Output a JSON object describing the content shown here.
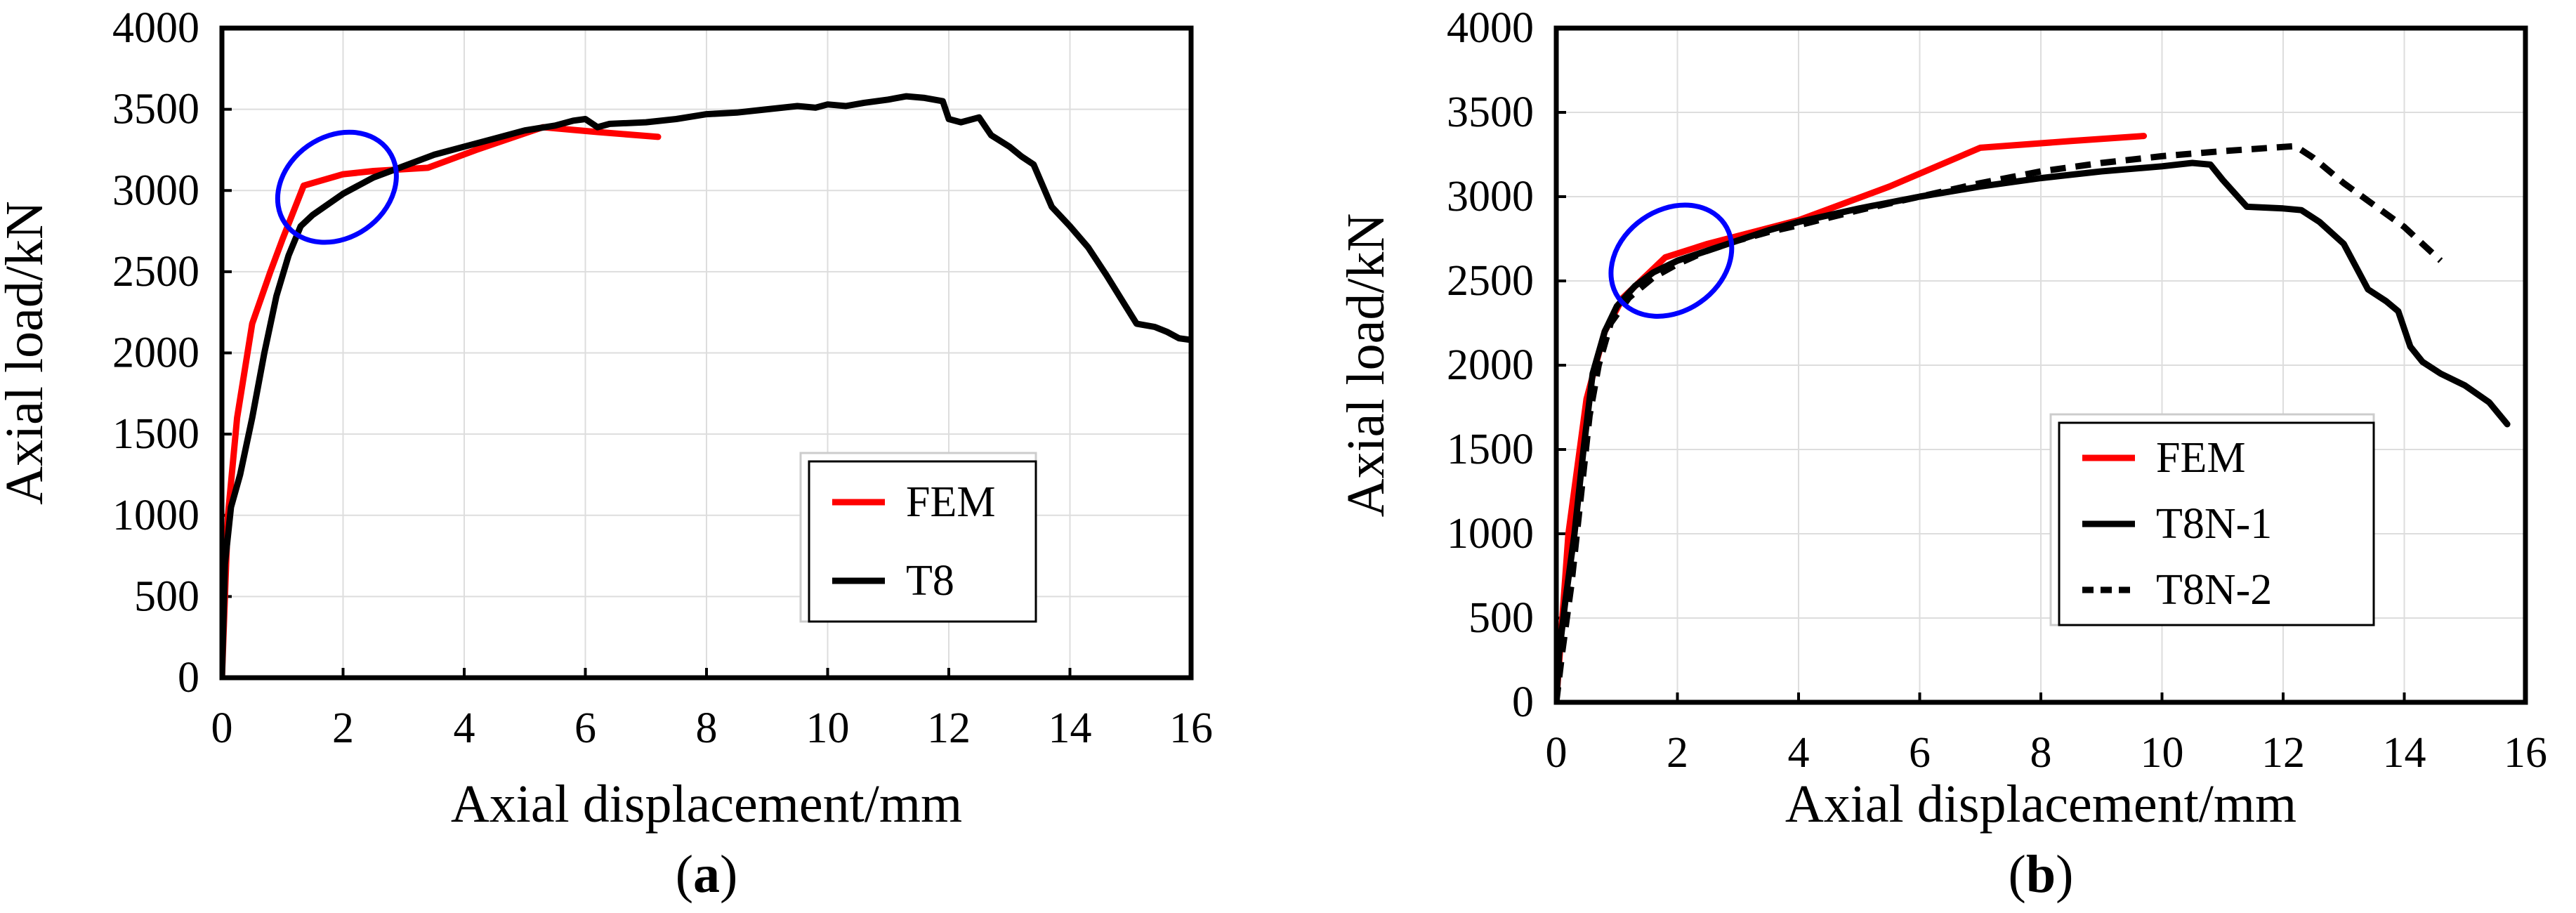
{
  "figure": {
    "panels": [
      {
        "caption_letter": "a"
      },
      {
        "caption_letter": "b"
      }
    ]
  },
  "chart_data": [
    {
      "type": "line",
      "xlabel": "Axial displacement/mm",
      "ylabel": "Axial load/kN",
      "xlim": [
        0,
        16
      ],
      "ylim": [
        0,
        4000
      ],
      "xticks": [
        0,
        2,
        4,
        6,
        8,
        10,
        12,
        14,
        16
      ],
      "yticks": [
        0,
        500,
        1000,
        1500,
        2000,
        2500,
        3000,
        3500,
        4000
      ],
      "grid": true,
      "legend_position": "bottom-right",
      "annotation": "blue ellipse around the initial yield region (about x 1-2.5 mm, y 2800-3200 kN)",
      "series": [
        {
          "name": "FEM",
          "color": "#ff0000",
          "style": "solid",
          "points": [
            [
              0,
              0
            ],
            [
              0.1,
              1000
            ],
            [
              0.25,
              1600
            ],
            [
              0.5,
              2180
            ],
            [
              0.8,
              2500
            ],
            [
              1.0,
              2700
            ],
            [
              1.35,
              3030
            ],
            [
              2.0,
              3100
            ],
            [
              2.5,
              3120
            ],
            [
              3.4,
              3140
            ],
            [
              4.2,
              3250
            ],
            [
              5.3,
              3390
            ],
            [
              6.2,
              3360
            ],
            [
              7.2,
              3330
            ]
          ]
        },
        {
          "name": "T8",
          "color": "#000000",
          "style": "solid",
          "points": [
            [
              0,
              0
            ],
            [
              0.05,
              700
            ],
            [
              0.15,
              1050
            ],
            [
              0.3,
              1250
            ],
            [
              0.5,
              1600
            ],
            [
              0.7,
              2000
            ],
            [
              0.9,
              2350
            ],
            [
              1.1,
              2600
            ],
            [
              1.3,
              2780
            ],
            [
              1.5,
              2850
            ],
            [
              2.0,
              2980
            ],
            [
              2.5,
              3080
            ],
            [
              3.0,
              3150
            ],
            [
              3.5,
              3220
            ],
            [
              4.0,
              3270
            ],
            [
              4.5,
              3320
            ],
            [
              5.0,
              3370
            ],
            [
              5.5,
              3400
            ],
            [
              5.8,
              3430
            ],
            [
              6.0,
              3440
            ],
            [
              6.2,
              3390
            ],
            [
              6.4,
              3410
            ],
            [
              7.0,
              3420
            ],
            [
              7.5,
              3440
            ],
            [
              8.0,
              3470
            ],
            [
              8.5,
              3480
            ],
            [
              9.0,
              3500
            ],
            [
              9.5,
              3520
            ],
            [
              9.8,
              3510
            ],
            [
              10.0,
              3530
            ],
            [
              10.3,
              3520
            ],
            [
              10.6,
              3540
            ],
            [
              11.0,
              3560
            ],
            [
              11.3,
              3580
            ],
            [
              11.6,
              3570
            ],
            [
              11.9,
              3550
            ],
            [
              12.0,
              3440
            ],
            [
              12.2,
              3420
            ],
            [
              12.5,
              3450
            ],
            [
              12.7,
              3340
            ],
            [
              13.0,
              3270
            ],
            [
              13.2,
              3210
            ],
            [
              13.4,
              3160
            ],
            [
              13.7,
              2900
            ],
            [
              14.0,
              2780
            ],
            [
              14.3,
              2650
            ],
            [
              14.6,
              2480
            ],
            [
              14.9,
              2300
            ],
            [
              15.1,
              2180
            ],
            [
              15.4,
              2160
            ],
            [
              15.6,
              2130
            ],
            [
              15.8,
              2090
            ],
            [
              16.0,
              2080
            ]
          ]
        }
      ]
    },
    {
      "type": "line",
      "xlabel": "Axial displacement/mm",
      "ylabel": "Axial load/kN",
      "xlim": [
        0,
        16
      ],
      "ylim": [
        0,
        4000
      ],
      "xticks": [
        0,
        2,
        4,
        6,
        8,
        10,
        12,
        14,
        16
      ],
      "yticks": [
        0,
        500,
        1000,
        1500,
        2000,
        2500,
        3000,
        3500,
        4000
      ],
      "grid": true,
      "legend_position": "bottom-center",
      "annotation": "blue ellipse around the initial yield region (about x 1-3 mm, y 2300-2900 kN)",
      "series": [
        {
          "name": "FEM",
          "color": "#ff0000",
          "style": "solid",
          "points": [
            [
              0,
              0
            ],
            [
              0.2,
              1000
            ],
            [
              0.5,
              1800
            ],
            [
              0.8,
              2200
            ],
            [
              1.1,
              2400
            ],
            [
              1.8,
              2640
            ],
            [
              2.5,
              2720
            ],
            [
              4.0,
              2860
            ],
            [
              5.5,
              3060
            ],
            [
              7.0,
              3290
            ],
            [
              8.5,
              3330
            ],
            [
              9.7,
              3360
            ]
          ]
        },
        {
          "name": "T8N-1",
          "color": "#000000",
          "style": "solid",
          "points": [
            [
              0,
              0
            ],
            [
              0.05,
              300
            ],
            [
              0.15,
              600
            ],
            [
              0.3,
              1000
            ],
            [
              0.45,
              1500
            ],
            [
              0.6,
              1950
            ],
            [
              0.8,
              2200
            ],
            [
              1.0,
              2350
            ],
            [
              1.3,
              2470
            ],
            [
              1.6,
              2550
            ],
            [
              2.0,
              2620
            ],
            [
              2.5,
              2680
            ],
            [
              3.0,
              2740
            ],
            [
              3.5,
              2800
            ],
            [
              4.0,
              2850
            ],
            [
              5.0,
              2930
            ],
            [
              6.0,
              3000
            ],
            [
              7.0,
              3060
            ],
            [
              8.0,
              3110
            ],
            [
              9.0,
              3150
            ],
            [
              10.0,
              3180
            ],
            [
              10.5,
              3200
            ],
            [
              10.8,
              3190
            ],
            [
              11.0,
              3100
            ],
            [
              11.4,
              2940
            ],
            [
              12.0,
              2930
            ],
            [
              12.3,
              2920
            ],
            [
              12.6,
              2850
            ],
            [
              13.0,
              2720
            ],
            [
              13.4,
              2450
            ],
            [
              13.7,
              2380
            ],
            [
              13.9,
              2320
            ],
            [
              14.1,
              2110
            ],
            [
              14.3,
              2020
            ],
            [
              14.6,
              1950
            ],
            [
              15.0,
              1880
            ],
            [
              15.4,
              1780
            ],
            [
              15.7,
              1650
            ]
          ]
        },
        {
          "name": "T8N-2",
          "color": "#000000",
          "style": "dashed",
          "points": [
            [
              0,
              0
            ],
            [
              0.1,
              300
            ],
            [
              0.25,
              700
            ],
            [
              0.4,
              1200
            ],
            [
              0.55,
              1700
            ],
            [
              0.7,
              2000
            ],
            [
              0.9,
              2250
            ],
            [
              1.2,
              2400
            ],
            [
              1.6,
              2520
            ],
            [
              2.0,
              2600
            ],
            [
              2.5,
              2680
            ],
            [
              3.0,
              2740
            ],
            [
              3.5,
              2790
            ],
            [
              4.0,
              2830
            ],
            [
              5.0,
              2920
            ],
            [
              6.0,
              3000
            ],
            [
              7.0,
              3080
            ],
            [
              8.0,
              3150
            ],
            [
              9.0,
              3200
            ],
            [
              10.0,
              3240
            ],
            [
              11.0,
              3270
            ],
            [
              12.2,
              3300
            ],
            [
              12.5,
              3230
            ],
            [
              13.0,
              3080
            ],
            [
              13.5,
              2950
            ],
            [
              14.0,
              2820
            ],
            [
              14.6,
              2620
            ]
          ]
        }
      ]
    }
  ]
}
